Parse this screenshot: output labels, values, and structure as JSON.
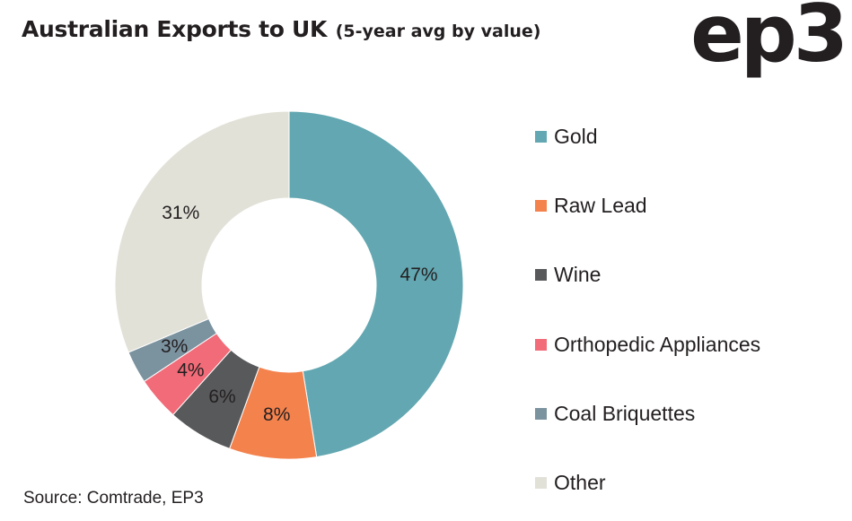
{
  "title": "Australian Exports to UK",
  "subtitle": "(5-year avg by value)",
  "logo_text": "ep3",
  "source": "Source: Comtrade, EP3",
  "chart_data": {
    "type": "pie",
    "style": "donut",
    "title": "Australian Exports to UK (5-year avg by value)",
    "categories": [
      "Gold",
      "Raw Lead",
      "Wine",
      "Orthopedic Appliances",
      "Coal Briquettes",
      "Other"
    ],
    "values": [
      47,
      8,
      6,
      4,
      3,
      31
    ],
    "value_labels": [
      "47%",
      "8%",
      "6%",
      "4%",
      "3%",
      "31%"
    ],
    "colors": [
      "#62a7b1",
      "#f4824d",
      "#58595b",
      "#f16b78",
      "#7b929f",
      "#e2e1d8"
    ],
    "start": "12 o'clock, clockwise",
    "legend_position": "right"
  }
}
